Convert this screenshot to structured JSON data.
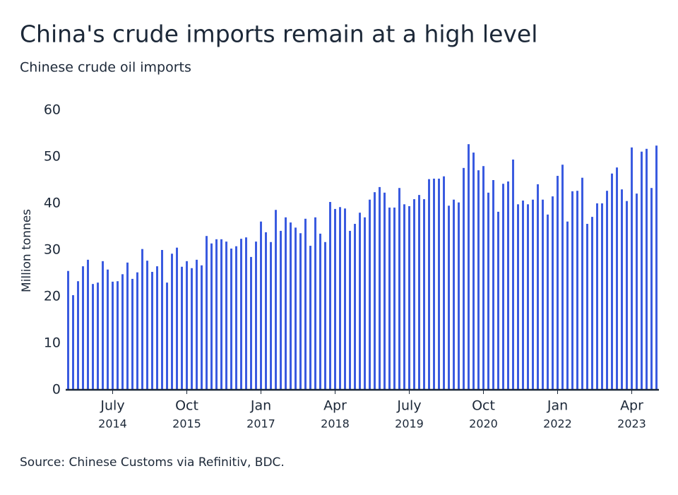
{
  "chart_data": {
    "type": "bar",
    "title": "China's crude imports remain at a high level",
    "subtitle": "Chinese crude oil imports",
    "y_label": "Million tonnes",
    "source": "Source: Chinese Customs via Refinitiv, BDC.",
    "color": "#3a5be0",
    "ylim": [
      0,
      60
    ],
    "yticks": [
      0,
      10,
      20,
      30,
      40,
      50,
      60
    ],
    "categories": [
      null,
      null,
      null,
      null,
      null,
      null,
      null,
      null,
      null,
      [
        "July",
        "2014"
      ],
      null,
      null,
      null,
      null,
      null,
      null,
      null,
      null,
      null,
      null,
      null,
      null,
      null,
      null,
      [
        "Oct",
        "2015"
      ],
      null,
      null,
      null,
      null,
      null,
      null,
      null,
      null,
      null,
      null,
      null,
      null,
      null,
      null,
      [
        "Jan",
        "2017"
      ],
      null,
      null,
      null,
      null,
      null,
      null,
      null,
      null,
      null,
      null,
      null,
      null,
      null,
      null,
      [
        "Apr",
        "2018"
      ],
      null,
      null,
      null,
      null,
      null,
      null,
      null,
      null,
      null,
      null,
      null,
      null,
      null,
      null,
      [
        "July",
        "2019"
      ],
      null,
      null,
      null,
      null,
      null,
      null,
      null,
      null,
      null,
      null,
      null,
      null,
      null,
      null,
      [
        "Oct",
        "2020"
      ],
      null,
      null,
      null,
      null,
      null,
      null,
      null,
      null,
      null,
      null,
      null,
      null,
      null,
      null,
      [
        "Jan",
        "2022"
      ],
      null,
      null,
      null,
      null,
      null,
      null,
      null,
      null,
      null,
      null,
      null,
      null,
      null,
      null,
      [
        "Apr",
        "2023"
      ],
      null,
      null,
      null,
      null,
      null
    ],
    "values": [
      25.5,
      20.3,
      23.3,
      26.5,
      27.9,
      22.7,
      23.0,
      27.6,
      25.8,
      23.2,
      23.3,
      24.8,
      27.3,
      23.8,
      25.2,
      30.2,
      27.7,
      25.3,
      26.5,
      30.0,
      23.0,
      29.2,
      30.5,
      26.4,
      27.6,
      26.1,
      27.9,
      26.7,
      33.0,
      31.4,
      32.3,
      32.3,
      31.8,
      30.3,
      30.8,
      32.4,
      32.7,
      28.5,
      31.8,
      36.1,
      33.8,
      31.7,
      38.6,
      34.1,
      37.0,
      35.9,
      34.8,
      33.6,
      36.7,
      30.9,
      37.0,
      33.5,
      31.7,
      40.3,
      38.8,
      39.2,
      38.9,
      34.1,
      35.6,
      38.0,
      37.0,
      40.8,
      42.4,
      43.5,
      42.3,
      39.1,
      39.1,
      43.3,
      39.8,
      39.4,
      40.9,
      41.8,
      40.9,
      45.2,
      45.3,
      45.3,
      45.8,
      39.5,
      40.8,
      40.2,
      47.6,
      52.7,
      50.9,
      47.1,
      48.0,
      42.3,
      45.0,
      38.2,
      44.2,
      44.7,
      49.4,
      39.8,
      40.6,
      39.8,
      40.8,
      44.1,
      40.8,
      37.6,
      41.5,
      45.9,
      48.3,
      36.1,
      42.6,
      42.7,
      45.5,
      35.6,
      37.1,
      40.0,
      40.0,
      42.7,
      46.4,
      47.7,
      43.0,
      40.5,
      52.0,
      42.1,
      51.1,
      51.7,
      43.3,
      52.4
    ]
  }
}
